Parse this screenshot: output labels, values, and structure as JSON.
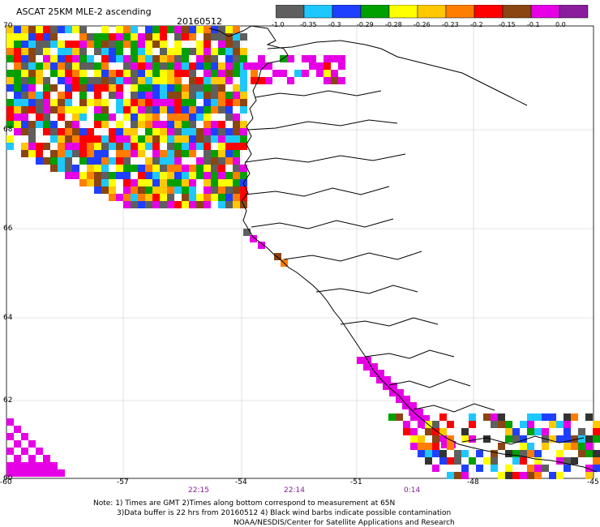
{
  "header": {
    "title": "ASCAT 25KM MLE-2 ascending",
    "date": "20160512"
  },
  "colorbar": {
    "labels": [
      "-1.0",
      "-0.35",
      "-0.3",
      "-0.29",
      "-0.28",
      "-0.26",
      "-0.23",
      "-0.2",
      "-0.15",
      "-0.1",
      "0.0"
    ],
    "colors": [
      "#5f5f5f",
      "#1ec8ff",
      "#1f3fff",
      "#00a000",
      "#ffff00",
      "#ffc800",
      "#ff7d00",
      "#ff0000",
      "#8b4513",
      "#e600e6",
      "#8a1d9c"
    ]
  },
  "axes": {
    "lon_labels": [
      "-60",
      "-57",
      "-54",
      "-51",
      "-48",
      "-45"
    ],
    "lat_labels": [
      "70",
      "68",
      "66",
      "64",
      "62",
      "60"
    ]
  },
  "times": [
    "22:15",
    "22:14",
    "0:14"
  ],
  "notes": [
    "Note: 1) Times are GMT 2)Times along bottom correspond to measurement at 65N",
    "3)Data buffer is 22 hrs from 20160512 4) Black wind barbs indicate possible contamination",
    "NOAA/NESDIS/Center for Satellite Applications and Research"
  ]
}
